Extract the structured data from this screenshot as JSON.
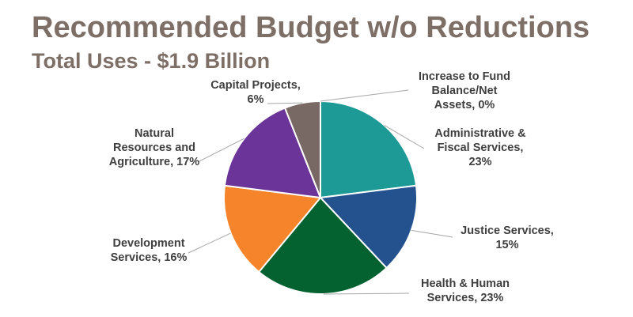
{
  "header": {
    "title": "Recommended Budget w/o Reductions",
    "subtitle": "Total Uses - $1.9 Billion"
  },
  "chart_data": {
    "type": "pie",
    "title": "Recommended Budget w/o Reductions",
    "subtitle": "Total Uses - $1.9 Billion",
    "start_angle_deg": 0,
    "direction": "clockwise",
    "slices": [
      {
        "name": "Increase to Fund Balance/Net Assets",
        "value": 0,
        "color": "#7f7f7f",
        "label_lines": [
          "Increase to Fund",
          "Balance/Net",
          "Assets, 0%"
        ]
      },
      {
        "name": "Administrative & Fiscal Services",
        "value": 23,
        "color": "#1d9a96",
        "label_lines": [
          "Administrative &",
          "Fiscal Services,",
          "23%"
        ]
      },
      {
        "name": "Justice Services",
        "value": 15,
        "color": "#24528f",
        "label_lines": [
          "Justice Services,",
          "15%"
        ]
      },
      {
        "name": "Health & Human Services",
        "value": 23,
        "color": "#046231",
        "label_lines": [
          "Health & Human",
          "Services, 23%"
        ]
      },
      {
        "name": "Development Services",
        "value": 16,
        "color": "#f5842b",
        "label_lines": [
          "Development",
          "Services, 16%"
        ]
      },
      {
        "name": "Natural Resources and Agriculture",
        "value": 17,
        "color": "#6b3499",
        "label_lines": [
          "Natural",
          "Resources and",
          "Agriculture, 17%"
        ]
      },
      {
        "name": "Capital Projects",
        "value": 6,
        "color": "#786964",
        "label_lines": [
          "Capital Projects,",
          "6%"
        ]
      }
    ]
  }
}
